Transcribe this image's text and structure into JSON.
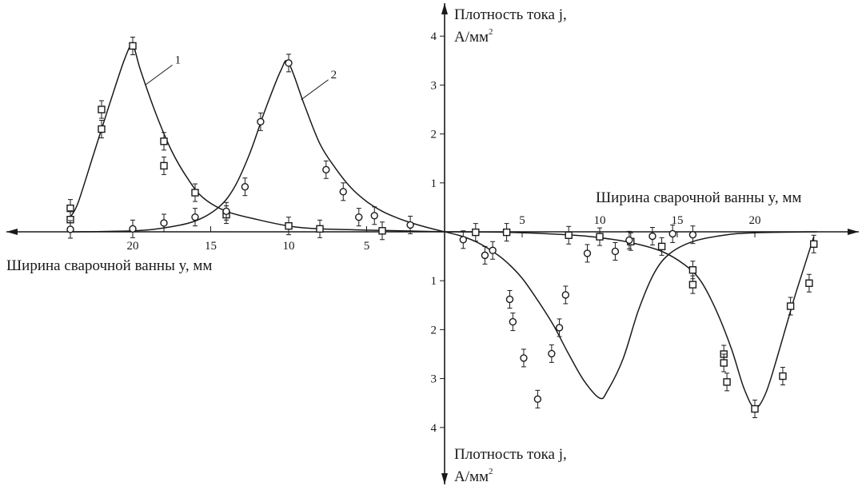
{
  "chart_data": {
    "type": "scatter",
    "title": "",
    "x_axis_right_label": "Ширина сварочной ванны y, мм",
    "x_axis_left_label": "Ширина сварочной ванны y, мм",
    "y_axis_top_label_line1": "Плотность тока j,",
    "y_axis_top_label_line2": "А/мм",
    "y_axis_top_label_sup": "2",
    "y_axis_bottom_label_line1": "Плотность тока j,",
    "y_axis_bottom_label_line2": "А/мм",
    "y_axis_bottom_label_sup": "2",
    "x_ticks_left": [
      "20",
      "15",
      "10",
      "5"
    ],
    "x_ticks_right": [
      "5",
      "10",
      "15",
      "20"
    ],
    "y_ticks_top": [
      "1",
      "2",
      "3",
      "4"
    ],
    "y_ticks_bottom": [
      "1",
      "2",
      "3",
      "4"
    ],
    "xlim_left": [
      0,
      24
    ],
    "xlim_right": [
      0,
      24
    ],
    "ylim": [
      -4.4,
      4.4
    ],
    "grid": false,
    "curve_labels": [
      "1",
      "2"
    ],
    "series": [
      {
        "name": "1",
        "marker": "square",
        "upper_curve": [
          [
            0,
            0
          ],
          [
            4,
            0.03
          ],
          [
            8,
            0.06
          ],
          [
            10,
            0.12
          ],
          [
            12,
            0.25
          ],
          [
            14,
            0.42
          ],
          [
            15.5,
            0.7
          ],
          [
            16.5,
            1.1
          ],
          [
            17.5,
            1.65
          ],
          [
            18.5,
            2.4
          ],
          [
            19.5,
            3.3
          ],
          [
            20,
            3.8
          ],
          [
            20.5,
            3.55
          ],
          [
            21.5,
            2.6
          ],
          [
            22.5,
            1.6
          ],
          [
            23.5,
            0.6
          ],
          [
            24,
            0.3
          ]
        ],
        "upper_points": [
          [
            24,
            0.48
          ],
          [
            24,
            0.25
          ],
          [
            22,
            2.5
          ],
          [
            22,
            2.1
          ],
          [
            18,
            1.85
          ],
          [
            18,
            1.35
          ],
          [
            16,
            0.8
          ],
          [
            14,
            0.35
          ],
          [
            10,
            0.12
          ],
          [
            8,
            0.06
          ],
          [
            4,
            0.02
          ],
          [
            20,
            3.8
          ]
        ],
        "lower_curve": [
          [
            0,
            0
          ],
          [
            4,
            -0.01
          ],
          [
            8,
            -0.06
          ],
          [
            10,
            -0.12
          ],
          [
            12,
            -0.22
          ],
          [
            14,
            -0.4
          ],
          [
            15.5,
            -0.68
          ],
          [
            16.5,
            -1.0
          ],
          [
            17.5,
            -1.6
          ],
          [
            18.5,
            -2.4
          ],
          [
            19.3,
            -3.2
          ],
          [
            20,
            -3.6
          ],
          [
            20.7,
            -3.3
          ],
          [
            21.5,
            -2.5
          ],
          [
            22.5,
            -1.4
          ],
          [
            23.3,
            -0.6
          ],
          [
            23.8,
            -0.1
          ]
        ],
        "lower_points": [
          [
            2,
            -0.01
          ],
          [
            4,
            -0.01
          ],
          [
            8,
            -0.07
          ],
          [
            10,
            -0.1
          ],
          [
            12,
            -0.2
          ],
          [
            14,
            -0.3
          ],
          [
            16,
            -0.78
          ],
          [
            16,
            -1.08
          ],
          [
            18,
            -2.5
          ],
          [
            18,
            -2.68
          ],
          [
            18.2,
            -3.07
          ],
          [
            20,
            -3.62
          ],
          [
            21.8,
            -2.95
          ],
          [
            22.3,
            -1.52
          ],
          [
            23.5,
            -1.05
          ],
          [
            23.8,
            -0.25
          ]
        ]
      },
      {
        "name": "2",
        "marker": "circle",
        "upper_curve": [
          [
            0,
            0
          ],
          [
            1,
            0.08
          ],
          [
            2,
            0.17
          ],
          [
            3,
            0.28
          ],
          [
            4,
            0.42
          ],
          [
            5,
            0.62
          ],
          [
            6,
            0.9
          ],
          [
            7,
            1.3
          ],
          [
            8,
            1.8
          ],
          [
            9,
            2.6
          ],
          [
            10,
            3.45
          ],
          [
            10.5,
            3.3
          ],
          [
            11.5,
            2.5
          ],
          [
            12.5,
            1.6
          ],
          [
            13.5,
            0.9
          ],
          [
            14.5,
            0.5
          ],
          [
            16,
            0.22
          ],
          [
            18,
            0.08
          ],
          [
            20,
            0.02
          ],
          [
            24,
            0
          ]
        ],
        "upper_points": [
          [
            24,
            0.05
          ],
          [
            20,
            0.06
          ],
          [
            18,
            0.18
          ],
          [
            16,
            0.3
          ],
          [
            14,
            0.42
          ],
          [
            12.8,
            0.92
          ],
          [
            11.8,
            2.25
          ],
          [
            10,
            3.45
          ],
          [
            7.6,
            1.27
          ],
          [
            6.5,
            0.82
          ],
          [
            5.5,
            0.3
          ],
          [
            4.5,
            0.33
          ],
          [
            2.2,
            0.14
          ]
        ],
        "lower_curve": [
          [
            0,
            0
          ],
          [
            1,
            -0.08
          ],
          [
            2,
            -0.2
          ],
          [
            3,
            -0.38
          ],
          [
            4,
            -0.62
          ],
          [
            5,
            -0.95
          ],
          [
            6,
            -1.4
          ],
          [
            7,
            -1.9
          ],
          [
            8,
            -2.5
          ],
          [
            9,
            -3.05
          ],
          [
            10,
            -3.4
          ],
          [
            10.5,
            -3.25
          ],
          [
            11.5,
            -2.6
          ],
          [
            12.5,
            -1.6
          ],
          [
            13.5,
            -0.85
          ],
          [
            14.5,
            -0.45
          ],
          [
            16,
            -0.2
          ],
          [
            18,
            -0.07
          ],
          [
            20,
            -0.02
          ],
          [
            24,
            0
          ]
        ],
        "lower_points": [
          [
            1.2,
            -0.16
          ],
          [
            2.6,
            -0.48
          ],
          [
            3.1,
            -0.38
          ],
          [
            4.2,
            -1.38
          ],
          [
            4.4,
            -1.84
          ],
          [
            5.1,
            -2.58
          ],
          [
            6.0,
            -3.42
          ],
          [
            6.9,
            -2.49
          ],
          [
            7.4,
            -1.96
          ],
          [
            7.8,
            -1.29
          ],
          [
            9.2,
            -0.44
          ],
          [
            11.0,
            -0.4
          ],
          [
            11.9,
            -0.17
          ],
          [
            13.4,
            -0.09
          ],
          [
            14.7,
            -0.04
          ],
          [
            16.0,
            -0.06
          ]
        ]
      }
    ]
  }
}
